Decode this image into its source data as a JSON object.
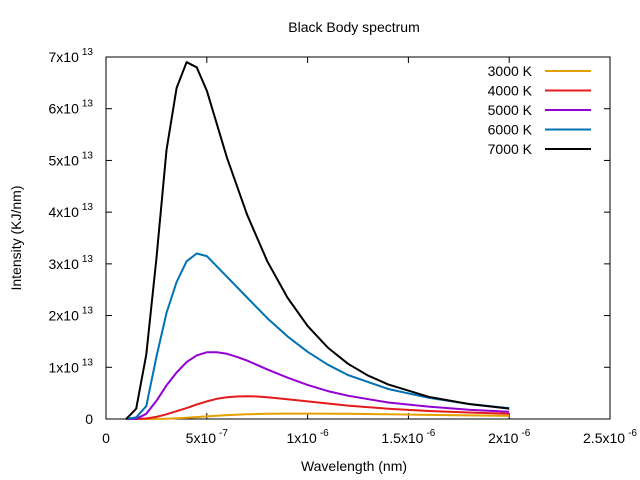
{
  "chart_data": {
    "type": "line",
    "title": "Black Body spectrum",
    "xlabel": "Wavelength (nm)",
    "ylabel": "Intensity (KJ/nm)",
    "xlim": [
      0,
      2.5e-06
    ],
    "ylim": [
      0,
      70000000000000.0
    ],
    "grid": false,
    "legend_position": "top-right",
    "x_ticks": [
      {
        "value": 0,
        "mant": "0",
        "exp": ""
      },
      {
        "value": 5e-07,
        "mant": "5x10",
        "exp": "-7"
      },
      {
        "value": 1e-06,
        "mant": "1x10",
        "exp": "-6"
      },
      {
        "value": 1.5e-06,
        "mant": "1.5x10",
        "exp": "-6"
      },
      {
        "value": 2e-06,
        "mant": "2x10",
        "exp": "-6"
      },
      {
        "value": 2.5e-06,
        "mant": "2.5x10",
        "exp": "-6"
      }
    ],
    "y_ticks": [
      {
        "value": 0,
        "mant": "0",
        "exp": ""
      },
      {
        "value": 10000000000000.0,
        "mant": "1x10",
        "exp": "13"
      },
      {
        "value": 20000000000000.0,
        "mant": "2x10",
        "exp": "13"
      },
      {
        "value": 30000000000000.0,
        "mant": "3x10",
        "exp": "13"
      },
      {
        "value": 40000000000000.0,
        "mant": "4x10",
        "exp": "13"
      },
      {
        "value": 50000000000000.0,
        "mant": "5x10",
        "exp": "13"
      },
      {
        "value": 60000000000000.0,
        "mant": "6x10",
        "exp": "13"
      },
      {
        "value": 70000000000000.0,
        "mant": "7x10",
        "exp": "13"
      }
    ],
    "series": [
      {
        "name": "3000 K",
        "color": "#e69f00",
        "x": [
          1e-07,
          2e-07,
          3e-07,
          4e-07,
          5e-07,
          6e-07,
          7e-07,
          8e-07,
          9e-07,
          1e-06,
          1.2e-06,
          1.4e-06,
          1.6e-06,
          1.8e-06,
          2e-06
        ],
        "y": [
          0,
          0,
          50000000000.0,
          250000000000.0,
          500000000000.0,
          750000000000.0,
          900000000000.0,
          1000000000000.0,
          1050000000000.0,
          1050000000000.0,
          1000000000000.0,
          900000000000.0,
          800000000000.0,
          700000000000.0,
          600000000000.0
        ]
      },
      {
        "name": "4000 K",
        "color": "#e41a1c",
        "x": [
          1e-07,
          1.5e-07,
          2e-07,
          2.5e-07,
          3e-07,
          3.5e-07,
          4e-07,
          4.5e-07,
          5e-07,
          5.5e-07,
          6e-07,
          6.5e-07,
          7e-07,
          7.5e-07,
          8e-07,
          9e-07,
          1e-06,
          1.2e-06,
          1.4e-06,
          1.6e-06,
          1.8e-06,
          2e-06
        ],
        "y": [
          0,
          0,
          100000000000.0,
          400000000000.0,
          900000000000.0,
          1500000000000.0,
          2100000000000.0,
          2800000000000.0,
          3400000000000.0,
          3900000000000.0,
          4200000000000.0,
          4350000000000.0,
          4400000000000.0,
          4350000000000.0,
          4200000000000.0,
          3800000000000.0,
          3400000000000.0,
          2600000000000.0,
          2000000000000.0,
          1550000000000.0,
          1250000000000.0,
          1000000000000.0
        ]
      },
      {
        "name": "5000 K",
        "color": "#9400d3",
        "x": [
          1e-07,
          1.5e-07,
          2e-07,
          2.5e-07,
          3e-07,
          3.5e-07,
          4e-07,
          4.5e-07,
          5e-07,
          5.5e-07,
          6e-07,
          6.5e-07,
          7e-07,
          8e-07,
          9e-07,
          1e-06,
          1.1e-06,
          1.2e-06,
          1.4e-06,
          1.6e-06,
          1.8e-06,
          2e-06
        ],
        "y": [
          0,
          20000000000.0,
          1000000000000.0,
          3500000000000.0,
          6500000000000.0,
          9000000000000.0,
          11000000000000.0,
          12300000000000.0,
          12900000000000.0,
          12900000000000.0,
          12600000000000.0,
          12000000000000.0,
          11300000000000.0,
          9600000000000.0,
          8000000000000.0,
          6600000000000.0,
          5400000000000.0,
          4500000000000.0,
          3200000000000.0,
          2400000000000.0,
          1800000000000.0,
          1400000000000.0
        ]
      },
      {
        "name": "6000 K",
        "color": "#0072b2",
        "x": [
          1e-07,
          1.5e-07,
          2e-07,
          2.5e-07,
          3e-07,
          3.5e-07,
          4e-07,
          4.5e-07,
          5e-07,
          5.5e-07,
          6e-07,
          7e-07,
          8e-07,
          9e-07,
          1e-06,
          1.1e-06,
          1.2e-06,
          1.4e-06,
          1.6e-06,
          1.8e-06,
          2e-06
        ],
        "y": [
          0,
          300000000000.0,
          2500000000000.0,
          12000000000000.0,
          20500000000000.0,
          26500000000000.0,
          30500000000000.0,
          32000000000000.0,
          31500000000000.0,
          29500000000000.0,
          27500000000000.0,
          23500000000000.0,
          19500000000000.0,
          16000000000000.0,
          13000000000000.0,
          10500000000000.0,
          8500000000000.0,
          5800000000000.0,
          4100000000000.0,
          2900000000000.0,
          2100000000000.0
        ]
      },
      {
        "name": "7000 K",
        "color": "#000000",
        "x": [
          1e-07,
          1.5e-07,
          2e-07,
          2.5e-07,
          3e-07,
          3.5e-07,
          4e-07,
          4.5e-07,
          5e-07,
          5.5e-07,
          6e-07,
          7e-07,
          8e-07,
          9e-07,
          1e-06,
          1.1e-06,
          1.2e-06,
          1.3e-06,
          1.4e-06,
          1.6e-06,
          1.8e-06,
          2e-06
        ],
        "y": [
          0,
          2000000000000.0,
          12500000000000.0,
          31000000000000.0,
          52000000000000.0,
          64000000000000.0,
          69000000000000.0,
          68000000000000.0,
          63500000000000.0,
          57000000000000.0,
          50500000000000.0,
          39500000000000.0,
          30500000000000.0,
          23500000000000.0,
          18000000000000.0,
          13800000000000.0,
          10700000000000.0,
          8400000000000.0,
          6700000000000.0,
          4300000000000.0,
          2900000000000.0,
          2000000000000.0
        ]
      }
    ]
  }
}
